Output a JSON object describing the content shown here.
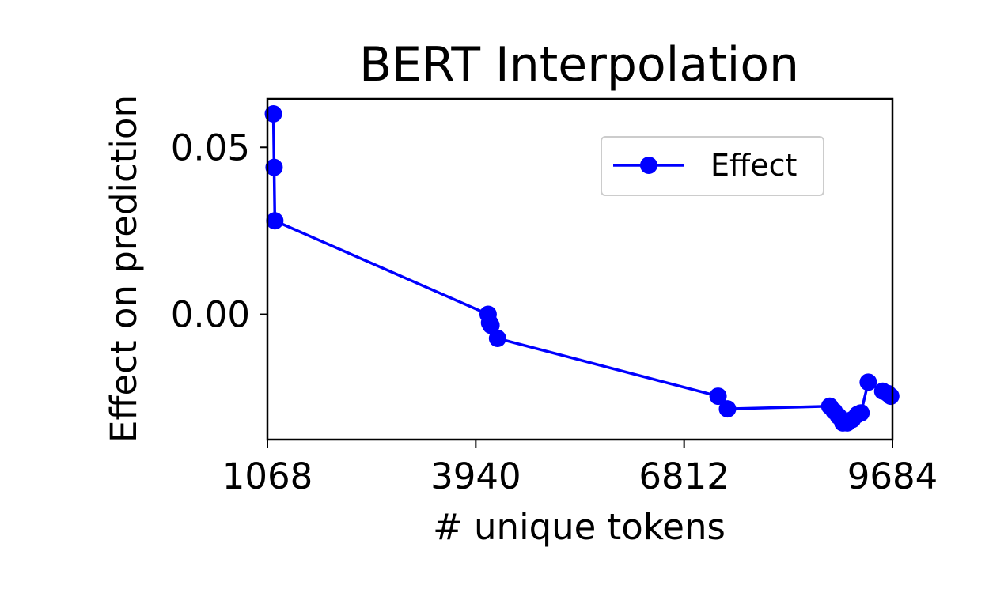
{
  "chart_data": {
    "type": "line",
    "title": "BERT Interpolation",
    "xlabel": "# unique tokens",
    "ylabel": "Effect on prediction",
    "xlim": [
      1068,
      9684
    ],
    "ylim": [
      -0.0375,
      0.0645
    ],
    "xticks": [
      1068,
      3940,
      6812,
      9684
    ],
    "xtick_labels": [
      "1068",
      "3940",
      "6812",
      "9684"
    ],
    "yticks": [
      0.0,
      0.05
    ],
    "ytick_labels": [
      "0.00",
      "0.05"
    ],
    "grid": false,
    "legend": {
      "position": "upper right",
      "entries": [
        "Effect"
      ]
    },
    "series": [
      {
        "name": "Effect",
        "color": "#0000ff",
        "marker": "circle",
        "x": [
          1150,
          1160,
          1170,
          4110,
          4130,
          4150,
          4240,
          7280,
          7410,
          8820,
          8880,
          8940,
          9000,
          9060,
          9130,
          9200,
          9250,
          9350,
          9550,
          9620,
          9660
        ],
        "y": [
          0.06,
          0.044,
          0.028,
          0.0,
          -0.0025,
          -0.0033,
          -0.0072,
          -0.0245,
          -0.0283,
          -0.0275,
          -0.029,
          -0.0305,
          -0.0325,
          -0.0325,
          -0.0315,
          -0.03,
          -0.0295,
          -0.0203,
          -0.023,
          -0.0237,
          -0.0245
        ]
      }
    ]
  }
}
